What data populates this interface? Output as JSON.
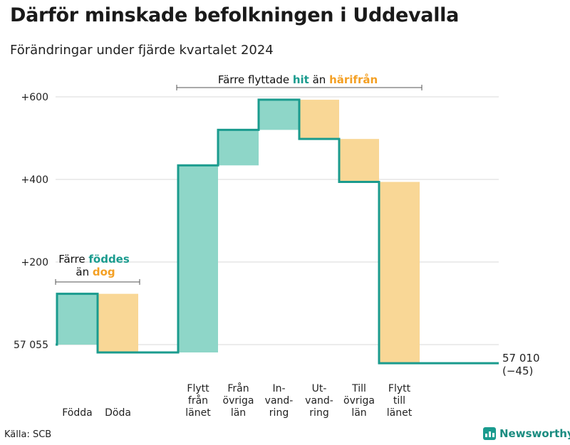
{
  "title": "Därför minskade befolkningen i Uddevalla",
  "subtitle": "Förändringar under fjärde kvartalet 2024",
  "source": "Källa: SCB",
  "brand": "Newsworthy",
  "colors": {
    "increase": "#8ed6c8",
    "decrease": "#f9d796",
    "line": "#1a9b8e",
    "hit_text": "#1a9b8e",
    "orange_text": "#f4a024",
    "grid": "#d9d9d9"
  },
  "chart_data": {
    "type": "waterfall",
    "base": 57055,
    "y_ticks": [
      {
        "value": 0,
        "label": "57 055"
      },
      {
        "value": 200,
        "label": "+200"
      },
      {
        "value": 400,
        "label": "+400"
      },
      {
        "value": 600,
        "label": "+600"
      }
    ],
    "ylim": [
      -60,
      640
    ],
    "steps": [
      {
        "label": [
          "Födda"
        ],
        "change": 123
      },
      {
        "label": [
          "Döda"
        ],
        "change": -142
      },
      {
        "label": [
          "Flytt",
          "från",
          "länet"
        ],
        "change": 453
      },
      {
        "label": [
          "Från",
          "övriga",
          "län"
        ],
        "change": 86
      },
      {
        "label": [
          "In-",
          "vand-",
          "ring"
        ],
        "change": 73
      },
      {
        "label": [
          "Ut-",
          "vand-",
          "ring"
        ],
        "change": -95
      },
      {
        "label": [
          "Till",
          "övriga",
          "län"
        ],
        "change": -104
      },
      {
        "label": [
          "Flytt",
          "till",
          "länet"
        ],
        "change": -439
      }
    ],
    "end_label": "57 010",
    "end_change_label": "(−45)",
    "annotations": [
      {
        "parts": [
          "Färre",
          "föddes",
          "än",
          "dog"
        ]
      },
      {
        "parts": [
          "Färre flyttade",
          "hit",
          "än",
          "härifrån"
        ]
      }
    ]
  }
}
